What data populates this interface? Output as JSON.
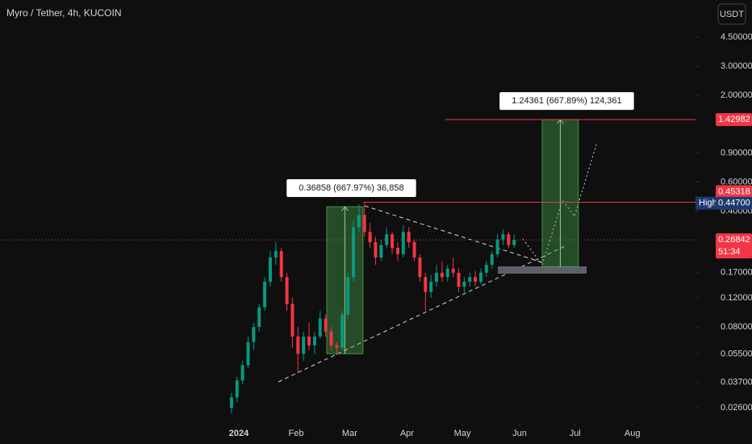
{
  "chart_data": {
    "type": "candlestick",
    "title": "Myro / Tether, 4h, KUCOIN",
    "currency": "USDT",
    "log_scale": true,
    "ylim": [
      0.0208,
      7.54
    ],
    "yticks": [
      {
        "value": 4.5,
        "label": "4.50000"
      },
      {
        "value": 3,
        "label": "3.00000"
      },
      {
        "value": 2,
        "label": "2.00000"
      },
      {
        "value": 0.9,
        "label": "0.90000"
      },
      {
        "value": 0.6,
        "label": "0.60000"
      },
      {
        "value": 0.4,
        "label": "0.40000"
      },
      {
        "value": 0.17,
        "label": "0.17000"
      },
      {
        "value": 0.12,
        "label": "0.12000"
      },
      {
        "value": 0.08,
        "label": "0.08000"
      },
      {
        "value": 0.055,
        "label": "0.05500"
      },
      {
        "value": 0.037,
        "label": "0.03700"
      },
      {
        "value": 0.026,
        "label": "0.02600"
      }
    ],
    "xlim": [
      -129.3,
      247.2
    ],
    "xticks": [
      {
        "value": 0,
        "label": "2024"
      },
      {
        "value": 31,
        "label": "Feb"
      },
      {
        "value": 60,
        "label": "Mar"
      },
      {
        "value": 91,
        "label": "Apr"
      },
      {
        "value": 121,
        "label": "May"
      },
      {
        "value": 152,
        "label": "Jun"
      },
      {
        "value": 182,
        "label": "Jul"
      },
      {
        "value": 213,
        "label": "Aug"
      }
    ],
    "up_color": "#089981",
    "down_color": "#f23645",
    "candles": {
      "x": [
        -4,
        -1,
        2,
        5,
        8,
        11,
        14,
        17,
        20,
        23,
        26,
        29,
        32,
        35,
        38,
        41,
        44,
        47,
        50,
        53,
        56,
        59,
        62,
        65,
        68,
        71,
        74,
        77,
        80,
        83,
        86,
        89,
        92,
        95,
        98,
        101,
        104,
        107,
        110,
        113,
        116,
        119,
        122,
        125,
        128,
        131,
        134,
        137,
        140,
        143,
        146,
        149
      ],
      "open": [
        0.026,
        0.03,
        0.038,
        0.047,
        0.065,
        0.08,
        0.105,
        0.15,
        0.21,
        0.23,
        0.16,
        0.11,
        0.07,
        0.055,
        0.07,
        0.062,
        0.07,
        0.09,
        0.075,
        0.062,
        0.06,
        0.095,
        0.16,
        0.32,
        0.38,
        0.3,
        0.26,
        0.21,
        0.25,
        0.29,
        0.24,
        0.22,
        0.3,
        0.26,
        0.21,
        0.16,
        0.13,
        0.15,
        0.17,
        0.16,
        0.18,
        0.17,
        0.14,
        0.15,
        0.16,
        0.15,
        0.17,
        0.19,
        0.22,
        0.27,
        0.29,
        0.25
      ],
      "high": [
        0.032,
        0.04,
        0.05,
        0.07,
        0.085,
        0.11,
        0.16,
        0.23,
        0.26,
        0.24,
        0.17,
        0.12,
        0.08,
        0.075,
        0.085,
        0.075,
        0.1,
        0.095,
        0.08,
        0.065,
        0.1,
        0.17,
        0.35,
        0.44,
        0.447,
        0.34,
        0.28,
        0.27,
        0.32,
        0.3,
        0.26,
        0.33,
        0.32,
        0.27,
        0.22,
        0.17,
        0.165,
        0.19,
        0.2,
        0.19,
        0.21,
        0.18,
        0.16,
        0.17,
        0.175,
        0.18,
        0.2,
        0.23,
        0.29,
        0.31,
        0.3,
        0.29
      ],
      "low": [
        0.024,
        0.028,
        0.036,
        0.045,
        0.058,
        0.075,
        0.1,
        0.14,
        0.19,
        0.15,
        0.1,
        0.06,
        0.042,
        0.05,
        0.058,
        0.055,
        0.068,
        0.07,
        0.058,
        0.054,
        0.058,
        0.09,
        0.15,
        0.3,
        0.28,
        0.24,
        0.19,
        0.2,
        0.24,
        0.22,
        0.2,
        0.21,
        0.24,
        0.2,
        0.15,
        0.1,
        0.12,
        0.14,
        0.15,
        0.15,
        0.16,
        0.13,
        0.125,
        0.14,
        0.14,
        0.145,
        0.16,
        0.18,
        0.21,
        0.25,
        0.24,
        0.24
      ],
      "close": [
        0.03,
        0.038,
        0.047,
        0.065,
        0.08,
        0.105,
        0.15,
        0.21,
        0.23,
        0.16,
        0.11,
        0.07,
        0.055,
        0.07,
        0.062,
        0.07,
        0.09,
        0.075,
        0.062,
        0.06,
        0.095,
        0.16,
        0.32,
        0.38,
        0.3,
        0.26,
        0.21,
        0.25,
        0.29,
        0.24,
        0.22,
        0.3,
        0.26,
        0.21,
        0.16,
        0.13,
        0.15,
        0.17,
        0.16,
        0.18,
        0.17,
        0.14,
        0.15,
        0.16,
        0.15,
        0.17,
        0.19,
        0.22,
        0.27,
        0.29,
        0.25,
        0.26842
      ]
    },
    "positions": [
      {
        "label": "0.36858 (667.97%) 36,858",
        "start": 47.6,
        "end": 67.2,
        "low": 0.0551,
        "high": 0.4257
      },
      {
        "label": "1.24361 (667.89%) 124,361",
        "start": 164.2,
        "end": 183.8,
        "low": 0.185,
        "high": 1.42982
      }
    ],
    "levels": [
      {
        "value": 1.42982,
        "start": 111.6
      },
      {
        "value": 0.45318,
        "start": 67.2
      }
    ],
    "level_color": "#f23645",
    "high": {
      "label": "High",
      "price": {
        "value": 0.447,
        "label": "0.44700"
      }
    },
    "last_price": 0.26842,
    "countdown": "51:34"
  }
}
